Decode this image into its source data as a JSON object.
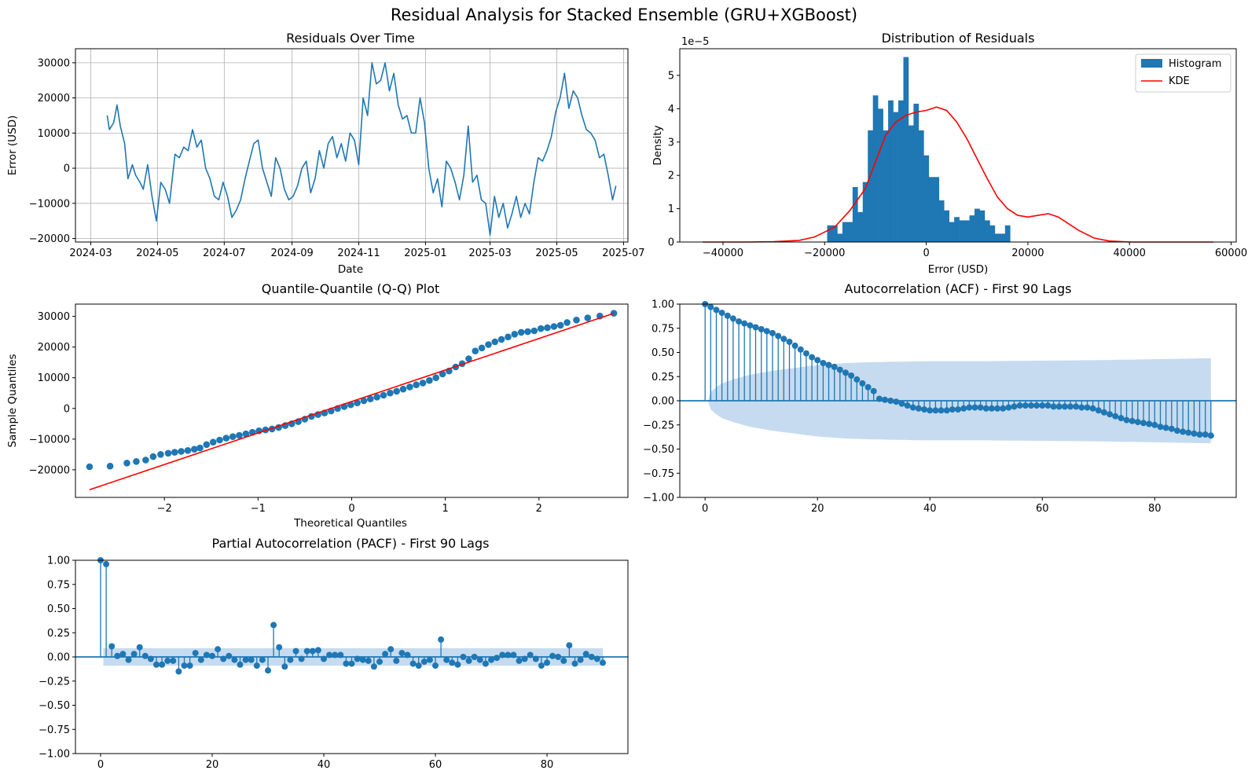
{
  "figure": {
    "suptitle": "Residual Analysis for Stacked Ensemble (GRU+XGBoost)"
  },
  "colors": {
    "blue": "#1f77b4",
    "red": "#ff0000",
    "band": "#c6dbef"
  },
  "chart_data": [
    {
      "id": "residuals",
      "type": "line",
      "title": "Residuals Over Time",
      "xlabel": "Date",
      "ylabel": "Error (USD)",
      "grid": true,
      "x_start": "2024-03-16",
      "x_end": "2025-06-24",
      "xticks": [
        "2024-03",
        "2024-05",
        "2024-07",
        "2024-09",
        "2024-11",
        "2025-01",
        "2025-03",
        "2025-05",
        "2025-07"
      ],
      "yticks": [
        "−20000",
        "−10000",
        "0",
        "10000",
        "20000",
        "30000"
      ],
      "ylim": [
        -21000,
        34000
      ],
      "series": [
        {
          "x": [
            "2024-03-16",
            "2024-03-18",
            "2024-03-22",
            "2024-03-25",
            "2024-03-28",
            "2024-04-01",
            "2024-04-04",
            "2024-04-08",
            "2024-04-11",
            "2024-04-15",
            "2024-04-18",
            "2024-04-22",
            "2024-04-26",
            "2024-04-30",
            "2024-05-04",
            "2024-05-08",
            "2024-05-12",
            "2024-05-17",
            "2024-05-21",
            "2024-05-25",
            "2024-05-29",
            "2024-06-02",
            "2024-06-06",
            "2024-06-10",
            "2024-06-14",
            "2024-06-18",
            "2024-06-22",
            "2024-06-26",
            "2024-06-30",
            "2024-07-04",
            "2024-07-08",
            "2024-07-12",
            "2024-07-16",
            "2024-07-20",
            "2024-07-24",
            "2024-07-28",
            "2024-08-01",
            "2024-08-05",
            "2024-08-09",
            "2024-08-13",
            "2024-08-17",
            "2024-08-21",
            "2024-08-25",
            "2024-08-29",
            "2024-09-02",
            "2024-09-06",
            "2024-09-10",
            "2024-09-14",
            "2024-09-18",
            "2024-09-22",
            "2024-09-26",
            "2024-09-30",
            "2024-10-04",
            "2024-10-08",
            "2024-10-12",
            "2024-10-16",
            "2024-10-20",
            "2024-10-24",
            "2024-10-28",
            "2024-11-01",
            "2024-11-05",
            "2024-11-09",
            "2024-11-13",
            "2024-11-17",
            "2024-11-21",
            "2024-11-25",
            "2024-11-29",
            "2024-12-03",
            "2024-12-07",
            "2024-12-11",
            "2024-12-15",
            "2024-12-19",
            "2024-12-23",
            "2024-12-27",
            "2024-12-31",
            "2025-01-04",
            "2025-01-08",
            "2025-01-12",
            "2025-01-16",
            "2025-01-20",
            "2025-01-24",
            "2025-01-28",
            "2025-02-01",
            "2025-02-05",
            "2025-02-09",
            "2025-02-13",
            "2025-02-17",
            "2025-02-21",
            "2025-02-25",
            "2025-03-01",
            "2025-03-05",
            "2025-03-09",
            "2025-03-13",
            "2025-03-17",
            "2025-03-21",
            "2025-03-25",
            "2025-03-29",
            "2025-04-02",
            "2025-04-06",
            "2025-04-10",
            "2025-04-14",
            "2025-04-18",
            "2025-04-22",
            "2025-04-26",
            "2025-04-30",
            "2025-05-04",
            "2025-05-08",
            "2025-05-12",
            "2025-05-16",
            "2025-05-20",
            "2025-05-24",
            "2025-05-28",
            "2025-06-01",
            "2025-06-05",
            "2025-06-09",
            "2025-06-13",
            "2025-06-17",
            "2025-06-21",
            "2025-06-24"
          ],
          "y": [
            15000,
            11000,
            13000,
            18000,
            12000,
            7000,
            -3000,
            1000,
            -2000,
            -4000,
            -6000,
            1000,
            -8000,
            -15000,
            -4000,
            -6000,
            -10000,
            4000,
            3000,
            6000,
            5000,
            11000,
            6000,
            8000,
            0,
            -3000,
            -8000,
            -9000,
            -4000,
            -8000,
            -14000,
            -12000,
            -9000,
            -3000,
            2000,
            7000,
            8000,
            0,
            -4000,
            -8000,
            3000,
            0,
            -6000,
            -9000,
            -8000,
            -5000,
            0,
            2000,
            -7000,
            -3000,
            5000,
            0,
            7000,
            9000,
            3000,
            7000,
            2000,
            10000,
            8000,
            1000,
            20000,
            15000,
            30000,
            24000,
            25000,
            30000,
            22000,
            27000,
            18000,
            14000,
            15000,
            10000,
            10000,
            20000,
            13000,
            0,
            -7000,
            -3000,
            -11000,
            2000,
            0,
            -4000,
            -9000,
            -2000,
            12000,
            -4000,
            -2000,
            -9000,
            -10000,
            -19000,
            -8000,
            -14000,
            -10000,
            -17000,
            -13000,
            -8000,
            -14000,
            -10000,
            -13000,
            -4000,
            3000,
            2000,
            5000,
            9000,
            16000,
            20000,
            27000,
            17000,
            22000,
            20000,
            15000,
            11000,
            10000,
            8000,
            3000,
            4000,
            -2000,
            -9000,
            -5000
          ]
        }
      ]
    },
    {
      "id": "distribution",
      "type": "bar",
      "title": "Distribution of Residuals",
      "xlabel": "Error (USD)",
      "ylabel": "Density",
      "offset_label": "1e−5",
      "xticks": [
        "−40000",
        "−20000",
        "0",
        "20000",
        "40000",
        "60000"
      ],
      "yticks": [
        "0",
        "1",
        "2",
        "3",
        "4",
        "5"
      ],
      "xlim": [
        -48500,
        61000
      ],
      "ylim": [
        0,
        5.8
      ],
      "legend": {
        "placement": "top-right",
        "entries": [
          "Histogram",
          "KDE"
        ]
      },
      "bins_start": -19500,
      "bin_width": 1000,
      "hist": [
        0.5,
        0.5,
        0.25,
        0.6,
        0.6,
        1.65,
        0.9,
        1.8,
        3.35,
        4.4,
        4.0,
        3.35,
        4.25,
        3.9,
        4.25,
        5.55,
        3.5,
        4.15,
        3.35,
        2.6,
        1.95,
        1.95,
        1.25,
        0.95,
        0.6,
        0.75,
        0.65,
        0.65,
        0.8,
        1.0,
        0.95,
        0.65,
        0.5,
        0.25,
        0.25,
        0.5
      ],
      "series": [
        {
          "name": "KDE",
          "x": [
            -44000,
            -35000,
            -30000,
            -25000,
            -22000,
            -20000,
            -18000,
            -15000,
            -12000,
            -10000,
            -8000,
            -6000,
            -4000,
            -2000,
            0,
            2000,
            4000,
            6000,
            8000,
            10000,
            12000,
            14000,
            16000,
            18000,
            20000,
            22000,
            24000,
            26000,
            28000,
            30000,
            33000,
            36000,
            40000,
            45000,
            50000,
            56500
          ],
          "y": [
            0,
            0,
            0.01,
            0.05,
            0.15,
            0.3,
            0.45,
            0.95,
            1.6,
            2.4,
            3.2,
            3.6,
            3.8,
            3.9,
            3.95,
            4.05,
            3.95,
            3.6,
            3.1,
            2.5,
            1.9,
            1.35,
            1.0,
            0.8,
            0.75,
            0.8,
            0.85,
            0.75,
            0.55,
            0.35,
            0.12,
            0.03,
            0,
            0,
            0,
            0
          ]
        }
      ]
    },
    {
      "id": "qq",
      "type": "scatter",
      "title": "Quantile-Quantile (Q-Q) Plot",
      "xlabel": "Theoretical Quantiles",
      "ylabel": "Sample Quantiles",
      "xticks": [
        "−2",
        "−1",
        "0",
        "1",
        "2"
      ],
      "yticks": [
        "−20000",
        "−10000",
        "0",
        "10000",
        "20000",
        "30000"
      ],
      "xlim": [
        -2.95,
        2.95
      ],
      "ylim": [
        -29000,
        34000
      ],
      "series": [
        {
          "x": [
            -2.8,
            -2.58,
            -2.4,
            -2.3,
            -2.2,
            -2.12,
            -2.04,
            -1.96,
            -1.89,
            -1.82,
            -1.75,
            -1.68,
            -1.62,
            -1.55,
            -1.48,
            -1.41,
            -1.34,
            -1.27,
            -1.2,
            -1.13,
            -1.06,
            -0.99,
            -0.92,
            -0.85,
            -0.78,
            -0.71,
            -0.64,
            -0.57,
            -0.5,
            -0.43,
            -0.36,
            -0.29,
            -0.22,
            -0.15,
            -0.08,
            -0.01,
            0.06,
            0.13,
            0.2,
            0.27,
            0.34,
            0.41,
            0.48,
            0.55,
            0.62,
            0.69,
            0.76,
            0.83,
            0.9,
            0.97,
            1.04,
            1.11,
            1.18,
            1.25,
            1.32,
            1.39,
            1.46,
            1.53,
            1.6,
            1.67,
            1.74,
            1.81,
            1.88,
            1.95,
            2.02,
            2.09,
            2.16,
            2.23,
            2.3,
            2.4,
            2.52,
            2.65,
            2.8
          ],
          "y": [
            -19000,
            -18800,
            -17800,
            -17300,
            -16800,
            -15700,
            -15000,
            -14600,
            -14300,
            -14000,
            -13700,
            -13300,
            -12900,
            -11800,
            -11000,
            -10300,
            -9700,
            -9200,
            -8800,
            -8300,
            -7800,
            -7300,
            -7000,
            -6700,
            -6200,
            -5600,
            -5000,
            -4300,
            -3500,
            -2600,
            -2000,
            -1500,
            -800,
            0,
            600,
            1200,
            1800,
            2500,
            3100,
            3700,
            4300,
            5000,
            5600,
            6300,
            7000,
            7700,
            8300,
            9100,
            10000,
            11200,
            12200,
            13500,
            14600,
            16200,
            18700,
            19700,
            20800,
            21700,
            22500,
            23300,
            24200,
            24800,
            25000,
            25300,
            26000,
            26300,
            26700,
            27100,
            28000,
            28800,
            29500,
            30100,
            31000
          ]
        },
        {
          "name": "line",
          "x": [
            -2.8,
            2.8
          ],
          "y": [
            -26500,
            31000
          ]
        }
      ]
    },
    {
      "id": "acf",
      "type": "scatter",
      "title": "Autocorrelation (ACF) - First 90 Lags",
      "xticks": [
        "0",
        "20",
        "40",
        "60",
        "80"
      ],
      "yticks": [
        "−1.00",
        "−0.75",
        "−0.50",
        "−0.25",
        "0.00",
        "0.25",
        "0.50",
        "0.75",
        "1.00"
      ],
      "xlim": [
        -4.5,
        94.5
      ],
      "ylim": [
        -1,
        1
      ],
      "values": [
        1.0,
        0.97,
        0.94,
        0.91,
        0.88,
        0.85,
        0.82,
        0.8,
        0.78,
        0.76,
        0.74,
        0.72,
        0.7,
        0.67,
        0.64,
        0.61,
        0.57,
        0.53,
        0.49,
        0.45,
        0.42,
        0.39,
        0.37,
        0.35,
        0.32,
        0.29,
        0.26,
        0.22,
        0.18,
        0.14,
        0.1,
        0.02,
        0.01,
        0.0,
        -0.01,
        -0.03,
        -0.05,
        -0.07,
        -0.08,
        -0.09,
        -0.1,
        -0.1,
        -0.1,
        -0.1,
        -0.09,
        -0.09,
        -0.08,
        -0.07,
        -0.07,
        -0.07,
        -0.08,
        -0.08,
        -0.08,
        -0.08,
        -0.07,
        -0.06,
        -0.05,
        -0.05,
        -0.05,
        -0.05,
        -0.05,
        -0.05,
        -0.06,
        -0.06,
        -0.06,
        -0.06,
        -0.06,
        -0.07,
        -0.07,
        -0.08,
        -0.1,
        -0.12,
        -0.14,
        -0.16,
        -0.18,
        -0.2,
        -0.21,
        -0.22,
        -0.23,
        -0.24,
        -0.25,
        -0.27,
        -0.28,
        -0.29,
        -0.31,
        -0.32,
        -0.33,
        -0.34,
        -0.35,
        -0.35,
        -0.36
      ],
      "band_lags": [
        0,
        1,
        2,
        3,
        5,
        8,
        12,
        16,
        20,
        25,
        30,
        40,
        50,
        60,
        70,
        80,
        90
      ],
      "band_halfwidth": [
        0.0,
        0.09,
        0.14,
        0.18,
        0.22,
        0.27,
        0.31,
        0.34,
        0.37,
        0.39,
        0.4,
        0.41,
        0.41,
        0.415,
        0.42,
        0.43,
        0.44
      ]
    },
    {
      "id": "pacf",
      "type": "scatter",
      "title": "Partial Autocorrelation (PACF) - First 90 Lags",
      "xticks": [
        "0",
        "20",
        "40",
        "60",
        "80"
      ],
      "yticks": [
        "−1.00",
        "−0.75",
        "−0.50",
        "−0.25",
        "0.00",
        "0.25",
        "0.50",
        "0.75",
        "1.00"
      ],
      "xlim": [
        -4.5,
        94.5
      ],
      "ylim": [
        -1,
        1
      ],
      "values": [
        1.0,
        0.96,
        0.11,
        0.01,
        0.03,
        -0.03,
        0.03,
        0.1,
        0.01,
        -0.02,
        -0.08,
        -0.08,
        -0.04,
        -0.04,
        -0.15,
        -0.09,
        -0.09,
        0.04,
        -0.03,
        0.02,
        0.01,
        0.08,
        -0.02,
        0.01,
        -0.03,
        -0.08,
        -0.03,
        -0.03,
        -0.09,
        -0.03,
        -0.14,
        0.33,
        0.1,
        -0.1,
        -0.03,
        0.06,
        -0.02,
        0.06,
        0.06,
        0.07,
        -0.02,
        0.02,
        0.02,
        0.02,
        -0.07,
        -0.07,
        -0.02,
        -0.03,
        -0.04,
        -0.1,
        -0.05,
        0.03,
        0.08,
        -0.04,
        0.04,
        0.02,
        -0.07,
        -0.09,
        -0.05,
        -0.03,
        -0.09,
        0.18,
        -0.03,
        -0.06,
        -0.08,
        0.0,
        -0.04,
        0.0,
        -0.03,
        -0.07,
        -0.03,
        -0.01,
        0.02,
        0.02,
        0.02,
        -0.04,
        -0.02,
        0.02,
        -0.02,
        -0.09,
        -0.06,
        0.01,
        0.0,
        -0.04,
        0.12,
        -0.07,
        -0.03,
        0.03,
        0.0,
        -0.02,
        -0.06
      ],
      "band_halfwidth": 0.09
    }
  ]
}
